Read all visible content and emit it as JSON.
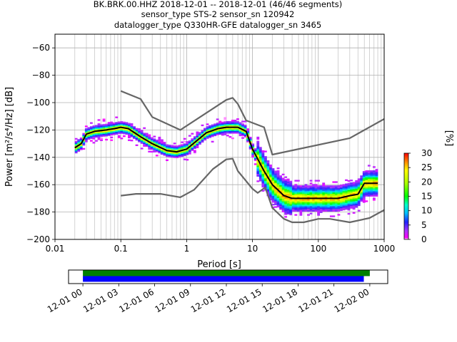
{
  "title_lines": [
    "BK.BRK.00.HHZ   2018-12-01 -- 2018-12-01  (46/46 segments)",
    "sensor_type STS-2 sensor_sn 120942",
    "datalogger_type Q330HR-GFE datalogger_sn 3465"
  ],
  "colorbar": {
    "label": "[%]",
    "ticks": [
      "0",
      "5",
      "10",
      "15",
      "20",
      "25",
      "30"
    ],
    "range": [
      0,
      30
    ]
  },
  "colors": {
    "mean_line": "#000000",
    "noise_model": "#666666",
    "bar_green": "#008000",
    "bar_blue": "#0000ff"
  },
  "chart_data": [
    {
      "type": "heatmap",
      "xlabel": "Period [s]",
      "ylabel": "Power [m²/s⁴/Hz] [dB]",
      "xscale": "log",
      "xlim": [
        0.01,
        1000
      ],
      "ylim": [
        -200,
        -50
      ],
      "x_ticks": [
        "0.01",
        "0.1",
        "1",
        "10",
        "100",
        "1000"
      ],
      "y_ticks": [
        "-60",
        "-80",
        "-100",
        "-120",
        "-140",
        "-160",
        "-180",
        "-200"
      ],
      "grid": true,
      "series": [
        {
          "name": "",
          "role": "mean",
          "x": [
            0.02,
            0.025,
            0.03,
            0.04,
            0.06,
            0.08,
            0.1,
            0.13,
            0.2,
            0.3,
            0.5,
            0.7,
            1,
            1.5,
            2,
            3,
            4,
            5,
            6,
            8,
            10,
            15,
            20,
            30,
            40,
            60,
            100,
            200,
            300,
            400,
            500,
            600,
            800
          ],
          "y": [
            -133,
            -130,
            -123,
            -121,
            -120,
            -119,
            -118,
            -119,
            -125,
            -130,
            -135,
            -136,
            -134,
            -127,
            -122,
            -119,
            -118,
            -118,
            -118,
            -121,
            -134,
            -150,
            -160,
            -168,
            -170,
            -170,
            -170,
            -170,
            -168,
            -167,
            -159,
            -159,
            -159
          ]
        },
        {
          "name": "",
          "role": "noise_model_high",
          "x": [
            0.1,
            0.2,
            0.3,
            0.8,
            4,
            5,
            6,
            8,
            15,
            20,
            300,
            1000
          ],
          "y": [
            -91.5,
            -97.4,
            -110.5,
            -120,
            -98,
            -96.5,
            -101,
            -113,
            -118,
            -138,
            -126,
            -112
          ]
        },
        {
          "name": "",
          "role": "noise_model_low",
          "x": [
            0.1,
            0.17,
            0.4,
            0.8,
            1.3,
            2.5,
            4,
            5,
            6,
            10,
            12,
            15.6,
            20,
            30,
            40,
            60,
            100,
            150,
            300,
            600,
            1000
          ],
          "y": [
            -168,
            -166.7,
            -166.7,
            -169.2,
            -163.7,
            -148.6,
            -141.5,
            -141,
            -150,
            -163,
            -166,
            -162,
            -177,
            -185,
            -187.5,
            -187.5,
            -185,
            -185,
            -187.5,
            -184.4,
            -178.5
          ]
        }
      ]
    },
    {
      "type": "timeline",
      "x_ticks": [
        "12-01 00",
        "12-01 03",
        "12-01 06",
        "12-01 09",
        "12-01 12",
        "12-01 15",
        "12-01 18",
        "12-01 21",
        "12-02 00"
      ],
      "xlim_hours": [
        -1.2,
        25.5
      ],
      "segments": [
        {
          "color": "green",
          "start_hour": 0,
          "end_hour": 24.0
        },
        {
          "color": "blue",
          "start_hour": 0,
          "end_hour": 23.5
        }
      ]
    }
  ]
}
